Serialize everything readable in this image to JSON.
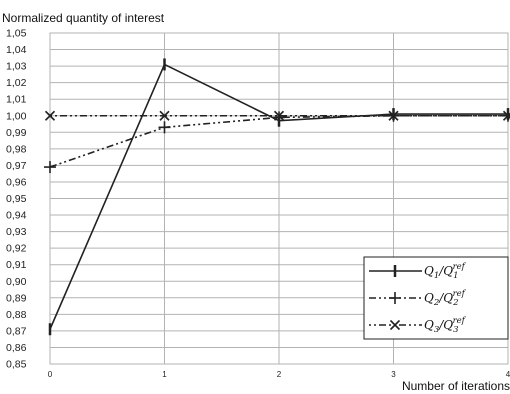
{
  "chart_data": {
    "type": "line",
    "ylabel": "Normalized quantity of interest",
    "xlabel": "Number of iterations",
    "x": [
      0,
      1,
      2,
      3,
      4
    ],
    "xlim": [
      0,
      4
    ],
    "ylim": [
      0.85,
      1.05
    ],
    "ytick_step": 0.01,
    "xticks": [
      "0",
      "1",
      "2",
      "3",
      "4"
    ],
    "decimal_separator": ",",
    "grid": true,
    "legend_position": "bottom-right",
    "series": [
      {
        "name": "Q1/Q1^ref",
        "legend": {
          "base": "Q",
          "sub": "1",
          "den_sub": "1",
          "sup": "ref"
        },
        "values": [
          0.871,
          1.031,
          0.997,
          1.001,
          1.001
        ],
        "line_style": "solid",
        "marker": "vbar",
        "color": "#222222"
      },
      {
        "name": "Q2/Q2^ref",
        "legend": {
          "base": "Q",
          "sub": "2",
          "den_sub": "2",
          "sup": "ref"
        },
        "values": [
          0.969,
          0.993,
          0.999,
          1.0,
          1.0
        ],
        "line_style": "dash-dot-dot",
        "marker": "plus",
        "color": "#222222"
      },
      {
        "name": "Q3/Q3^ref",
        "legend": {
          "base": "Q",
          "sub": "3",
          "den_sub": "3",
          "sup": "ref"
        },
        "values": [
          1.0,
          1.0,
          1.0,
          1.0,
          1.0
        ],
        "line_style": "dot-dot-dash",
        "marker": "x",
        "color": "#222222"
      }
    ]
  }
}
